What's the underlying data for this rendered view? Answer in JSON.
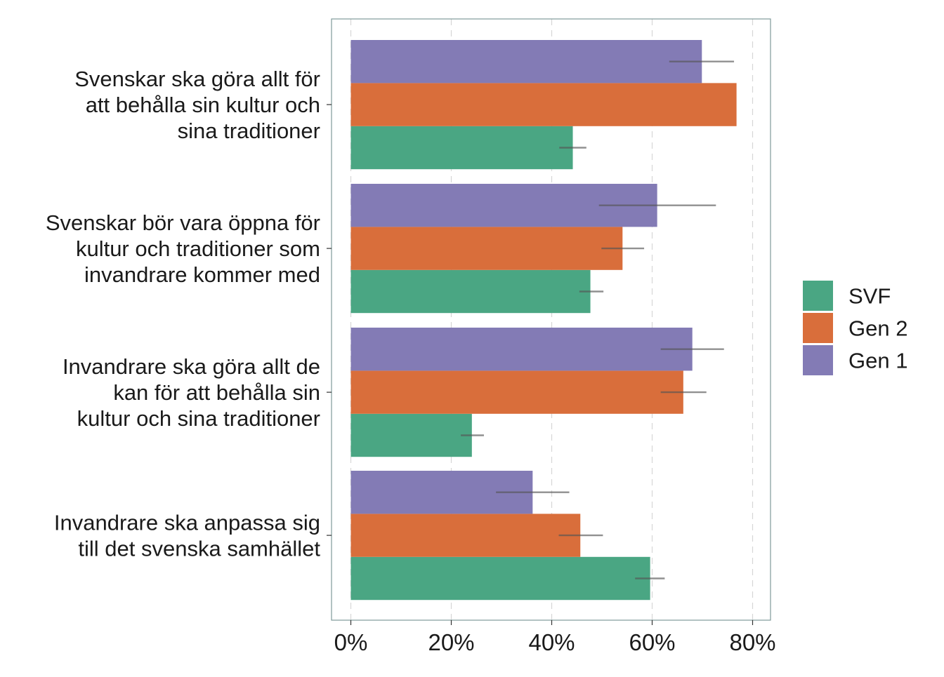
{
  "chart_data": {
    "type": "bar",
    "orientation": "horizontal",
    "title": "",
    "xlabel": "",
    "ylabel": "",
    "xlim": [
      -0.05,
      0.84
    ],
    "x_ticks": [
      0,
      0.2,
      0.4,
      0.6,
      0.8
    ],
    "x_tick_labels": [
      "0%",
      "20%",
      "40%",
      "60%",
      "80%"
    ],
    "grid": "vertical dashed",
    "legend_placement": "right",
    "categories": [
      {
        "lines": [
          "Svenskar ska göra allt för",
          "att behålla sin kultur och",
          "sina traditioner"
        ]
      },
      {
        "lines": [
          "Svenskar bör vara öppna för",
          "kultur och traditioner som",
          "invandrare kommer med"
        ]
      },
      {
        "lines": [
          "Invandrare ska göra allt de",
          "kan för att behålla sin",
          "kultur och sina traditioner"
        ]
      },
      {
        "lines": [
          "Invandrare ska anpassa sig",
          "till det svenska samhället"
        ]
      }
    ],
    "series": [
      {
        "name": "SVF",
        "color": "#4aa683",
        "values": [
          0.442,
          0.477,
          0.241,
          0.596
        ],
        "err_low": [
          0.415,
          0.455,
          0.219,
          0.566
        ],
        "err_high": [
          0.469,
          0.503,
          0.265,
          0.625
        ]
      },
      {
        "name": "Gen 2",
        "color": "#d96e3b",
        "values": [
          0.768,
          0.541,
          0.662,
          0.457
        ],
        "err_low": null,
        "err_high": null,
        "err_low_list": [
          null,
          0.499,
          0.617,
          0.414
        ],
        "err_high_list": [
          null,
          0.584,
          0.708,
          0.502
        ]
      },
      {
        "name": "Gen 1",
        "color": "#837bb5",
        "values": [
          0.699,
          0.61,
          0.68,
          0.362
        ],
        "err_low": [
          0.634,
          0.494,
          0.617,
          0.289
        ],
        "err_high": [
          0.763,
          0.727,
          0.743,
          0.435
        ]
      }
    ],
    "legend_order": [
      "SVF",
      "Gen 2",
      "Gen 1"
    ]
  }
}
